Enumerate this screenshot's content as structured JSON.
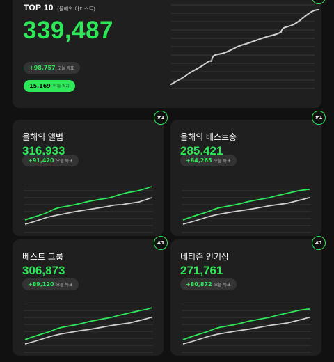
{
  "top": {
    "title": "TOP 10",
    "subtitle": "(올해의 아티스트)",
    "value": "339,487",
    "change_value": "+98,757",
    "change_label": "오늘 득표",
    "rank_value": "15,169",
    "rank_label": "현재 격차"
  },
  "cards": [
    {
      "title": "올해의 앨범",
      "value": "316,933",
      "change_value": "+91,420",
      "change_label": "오늘 득표",
      "rank": "#1"
    },
    {
      "title": "올해의 베스트송",
      "value": "285,421",
      "change_value": "+84,265",
      "change_label": "오늘 득표",
      "rank": "#1"
    },
    {
      "title": "베스트 그룹",
      "value": "306,873",
      "change_value": "+89,120",
      "change_label": "오늘 득표",
      "rank": "#1"
    },
    {
      "title": "네티즌 인기상",
      "value": "271,761",
      "change_value": "+80,872",
      "change_label": "오늘 득표",
      "rank": "#1"
    }
  ],
  "colors": {
    "accent": "#2ee859",
    "secondary_line": "#d0d0d0",
    "card": "#1f1f1f",
    "background": "#111111"
  }
}
